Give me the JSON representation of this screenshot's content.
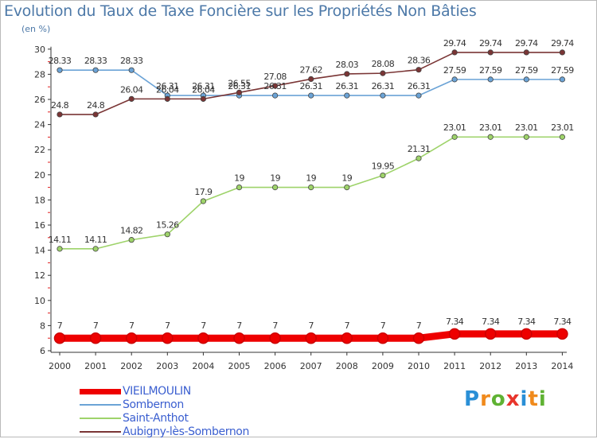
{
  "title": "Evolution du Taux de Taxe Foncière sur les Propriétés Non Bâties",
  "unit_label": "(en %)",
  "logo": {
    "text": [
      "P",
      "r",
      "o",
      "x",
      "i",
      "t",
      "i"
    ],
    "colors": [
      "#2a8fd6",
      "#f08a1c",
      "#5fb233",
      "#e8352c",
      "#2a8fd6",
      "#f08a1c",
      "#5fb233"
    ]
  },
  "chart_data": {
    "type": "line",
    "x": [
      "2000",
      "2001",
      "2002",
      "2003",
      "2004",
      "2005",
      "2006",
      "2007",
      "2008",
      "2009",
      "2010",
      "2011",
      "2012",
      "2013",
      "2014"
    ],
    "ylim": [
      6,
      30
    ],
    "yticks": [
      "6",
      "8",
      "10",
      "12",
      "14",
      "16",
      "18",
      "20",
      "22",
      "24",
      "26",
      "28",
      "30"
    ],
    "grid": false,
    "legend_position": "bottom-left",
    "series": [
      {
        "name": "VIEILMOULIN",
        "color": "#ee0000",
        "values": [
          7,
          7,
          7,
          7,
          7,
          7,
          7,
          7,
          7,
          7,
          7,
          7.34,
          7.34,
          7.34,
          7.34
        ],
        "labels": [
          "7",
          "7",
          "7",
          "7",
          "7",
          "7",
          "7",
          "7",
          "7",
          "7",
          "7",
          "7.34",
          "7.34",
          "7.34",
          "7.34"
        ]
      },
      {
        "name": "Sombernon",
        "color": "#6ba3d6",
        "values": [
          28.33,
          28.33,
          28.33,
          26.31,
          26.31,
          26.31,
          26.31,
          26.31,
          26.31,
          26.31,
          26.31,
          27.59,
          27.59,
          27.59,
          27.59
        ],
        "labels": [
          "28.33",
          "28.33",
          "28.33",
          "26.31",
          "26.31",
          "26.31",
          "26.31",
          "26.31",
          "26.31",
          "26.31",
          "26.31",
          "27.59",
          "27.59",
          "27.59",
          "27.59"
        ]
      },
      {
        "name": "Saint-Anthot",
        "color": "#9ed36a",
        "values": [
          14.11,
          14.11,
          14.82,
          15.26,
          17.9,
          19,
          19,
          19,
          19,
          19.95,
          21.31,
          23.01,
          23.01,
          23.01,
          23.01
        ],
        "labels": [
          "14.11",
          "14.11",
          "14.82",
          "15.26",
          "17.9",
          "19",
          "19",
          "19",
          "19",
          "19.95",
          "21.31",
          "23.01",
          "23.01",
          "23.01",
          "23.01"
        ]
      },
      {
        "name": "Aubigny-lès-Sombernon",
        "color": "#7a3535",
        "values": [
          24.8,
          24.8,
          26.04,
          26.04,
          26.04,
          26.55,
          27.08,
          27.62,
          28.03,
          28.08,
          28.36,
          29.74,
          29.74,
          29.74,
          29.74
        ],
        "labels": [
          "24.8",
          "24.8",
          "26.04",
          "26.04",
          "26.04",
          "26.55",
          "27.08",
          "27.62",
          "28.03",
          "28.08",
          "28.36",
          "29.74",
          "29.74",
          "29.74",
          "29.74"
        ]
      }
    ]
  }
}
